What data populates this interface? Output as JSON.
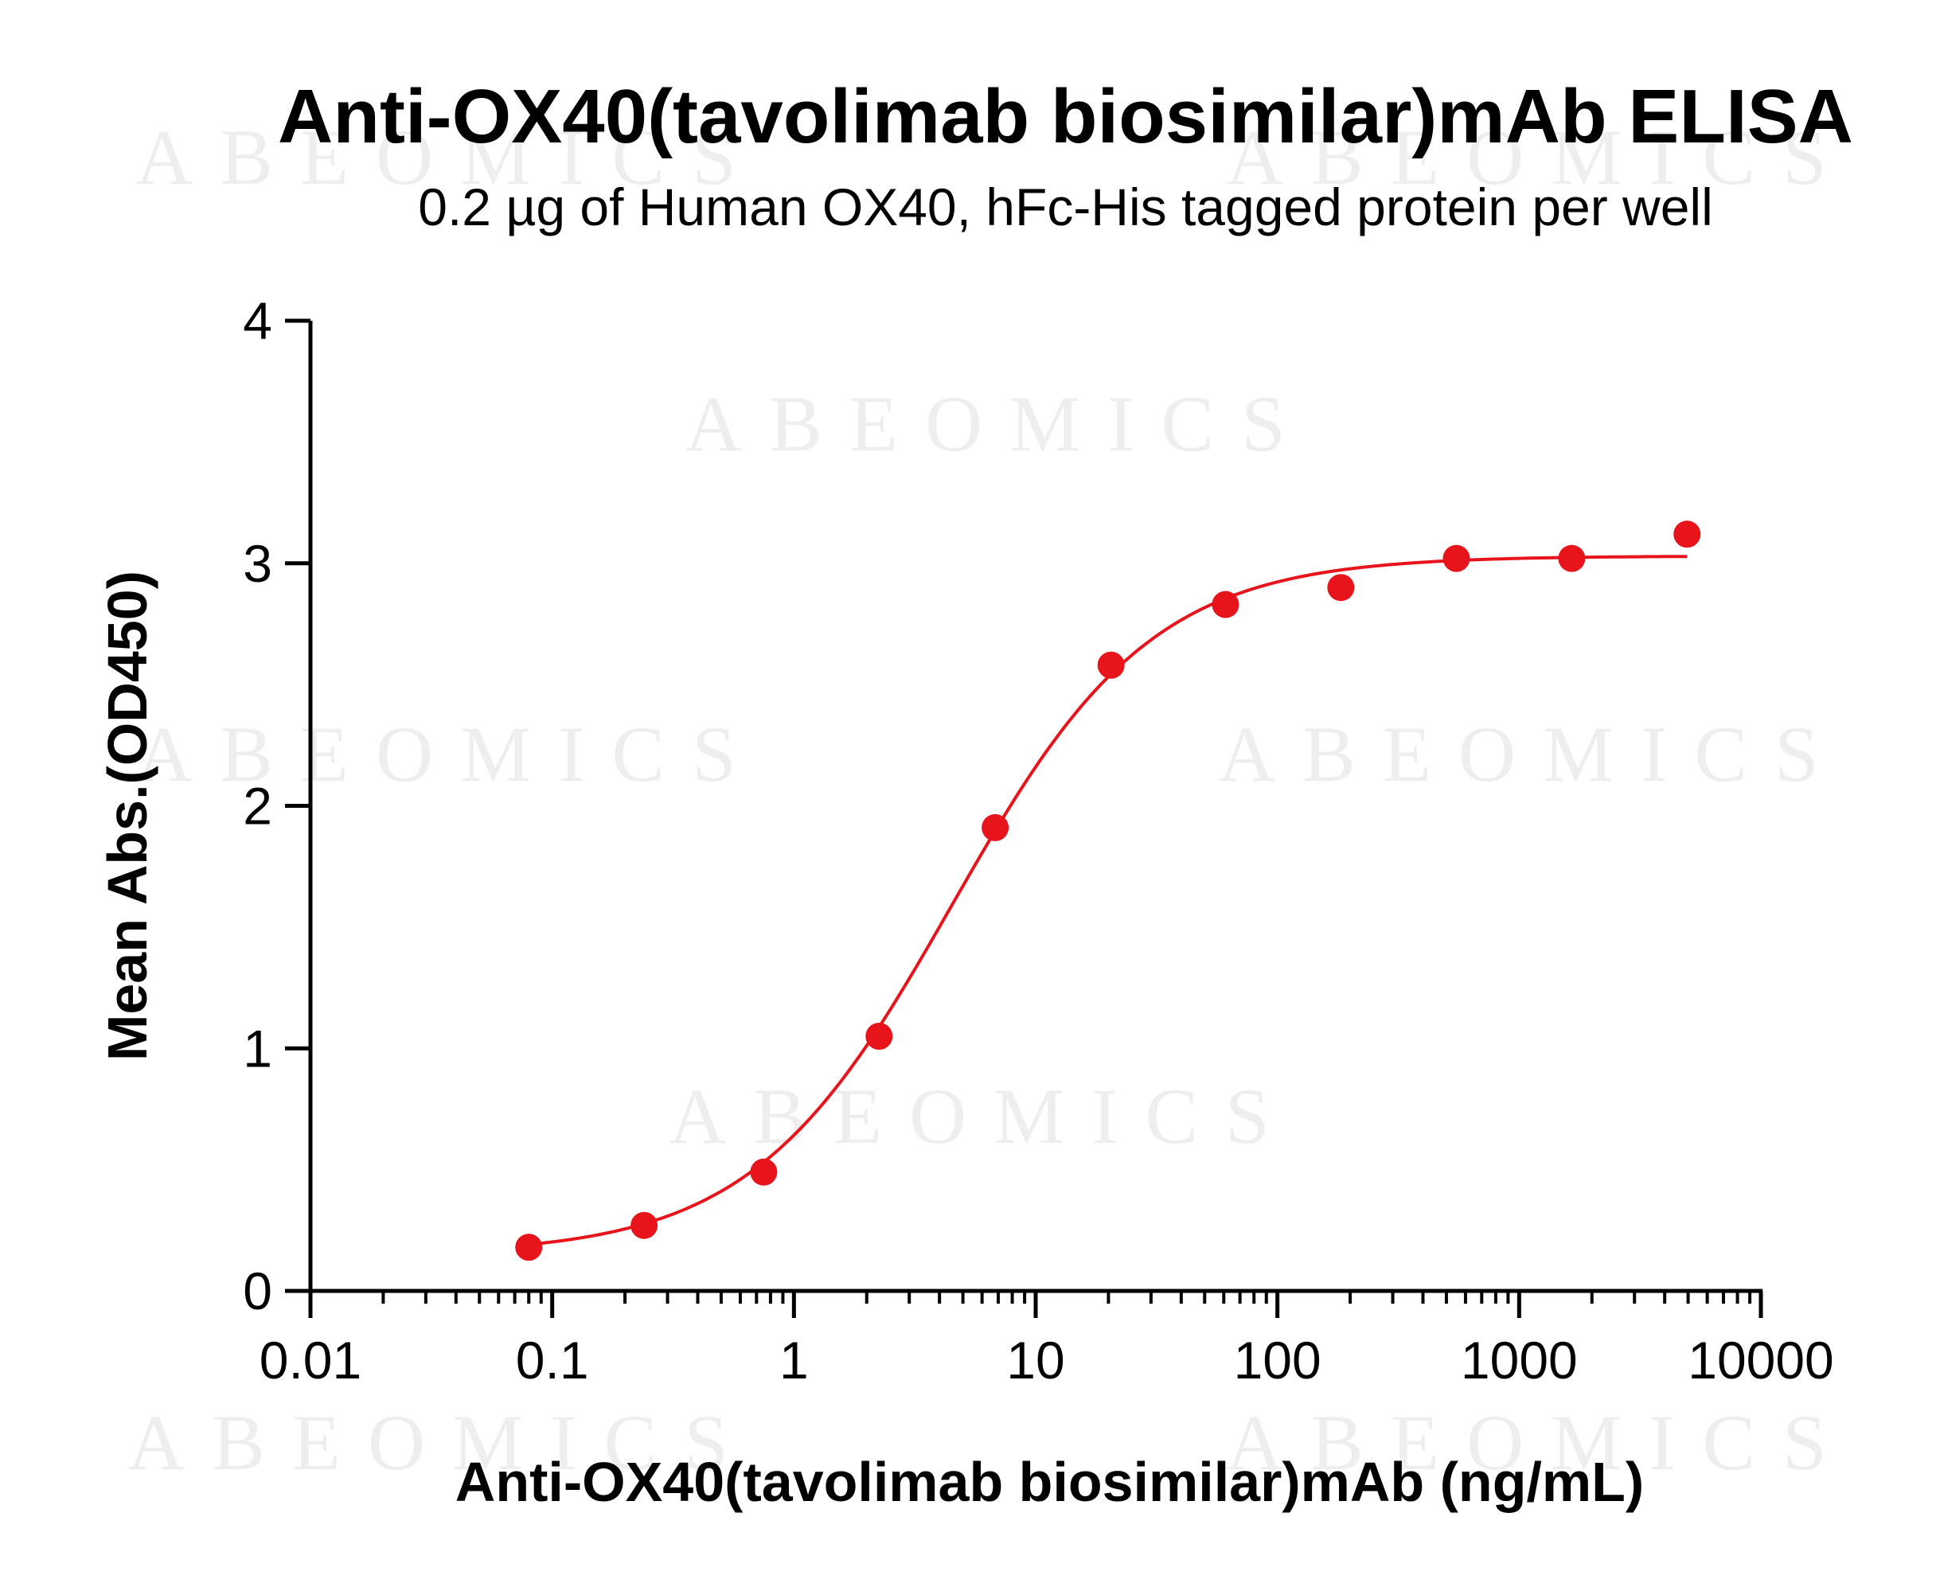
{
  "watermark": "ABEOMICS",
  "colors": {
    "series": "#e8141b",
    "axis": "#000000",
    "watermark": "#eeeeee"
  },
  "chart_data": {
    "type": "scatter",
    "title": "Anti-OX40(tavolimab biosimilar)mAb ELISA",
    "subtitle": "0.2 µg of Human OX40, hFc-His tagged protein per well",
    "xlabel": "Anti-OX40(tavolimab biosimilar)mAb (ng/mL)",
    "ylabel": "Mean Abs.(OD450)",
    "x_scale": "log10",
    "xlim": [
      0.01,
      10000
    ],
    "ylim": [
      0,
      4
    ],
    "x_ticks": [
      "0.01",
      "0.1",
      "1",
      "10",
      "100",
      "1000",
      "10000"
    ],
    "y_ticks": [
      "0",
      "1",
      "2",
      "3",
      "4"
    ],
    "grid": false,
    "legend": "none",
    "series": [
      {
        "x": [
          0.08,
          0.24,
          0.75,
          2.25,
          6.8,
          20.5,
          61,
          183,
          550,
          1650,
          4950
        ],
        "y": [
          0.18,
          0.27,
          0.49,
          1.05,
          1.91,
          2.58,
          2.83,
          2.9,
          3.02,
          3.02,
          3.12
        ]
      }
    ],
    "fit_curve": {
      "type": "4PL",
      "bottom": 0.15,
      "top": 3.03,
      "ec50": 4.5,
      "hill": 1.05,
      "x_range": [
        0.08,
        4950
      ]
    }
  }
}
